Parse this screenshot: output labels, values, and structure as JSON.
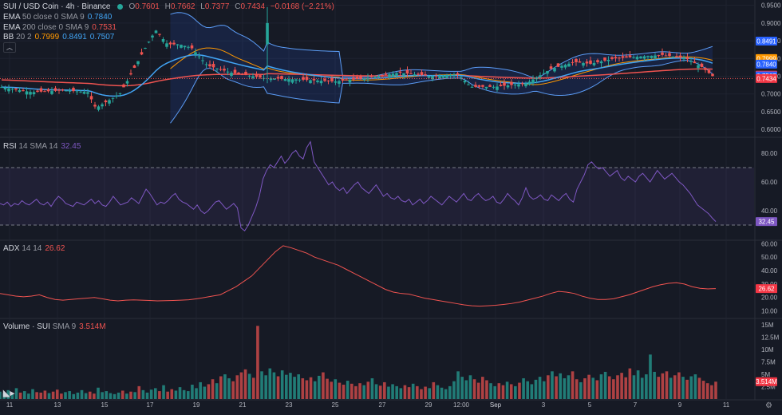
{
  "header": {
    "symbol": "SUI / USD Coin · 4h · Binance",
    "o_label": "O",
    "o": "0.7601",
    "h_label": "H",
    "h": "0.7662",
    "l_label": "L",
    "l": "0.7377",
    "c_label": "C",
    "c": "0.7434",
    "change": "−0.0168 (−2.21%)"
  },
  "indicators": {
    "ema50": {
      "name": "EMA",
      "params": "50 close 0 SMA 9",
      "value": "0.7840"
    },
    "ema200": {
      "name": "EMA",
      "params": "200 close 0 SMA 9",
      "value": "0.7531"
    },
    "bb": {
      "name": "BB",
      "params": "20 2",
      "v1": "0.7999",
      "v2": "0.8491",
      "v3": "0.7507"
    }
  },
  "rsi_legend": {
    "name": "RSI",
    "params": "14 SMA 14",
    "value": "32.45"
  },
  "adx_legend": {
    "name": "ADX",
    "params": "14 14",
    "value": "26.62"
  },
  "vol_legend": {
    "name": "Volume · SUI",
    "params": "SMA 9",
    "value": "3.514M"
  },
  "colors": {
    "up": "#26a69a",
    "down": "#ef5350",
    "ema50": "#42a5f5",
    "ema200": "#ef5350",
    "bb_basis": "#ff9800",
    "bb_band": "#5b9cf6",
    "rsi": "#7e57c2",
    "adx": "#ef5350"
  },
  "chart_data": [
    {
      "type": "candlestick",
      "name": "price",
      "x": [
        "11",
        "13",
        "15",
        "17",
        "19",
        "21",
        "23",
        "25",
        "27",
        "29",
        "12:00",
        "Sep",
        "3",
        "5",
        "7",
        "9",
        "11"
      ],
      "yticks": [
        "0.9500",
        "0.9000",
        "0.8500",
        "0.8000",
        "0.7500",
        "0.7000",
        "0.6500",
        "0.6000"
      ],
      "ylim": [
        0.58,
        0.965
      ],
      "last_close": 0.7434,
      "price_labels": [
        {
          "text": "0.8491",
          "value": 0.8491,
          "color": "#2962ff"
        },
        {
          "text": "0.7999",
          "value": 0.7999,
          "color": "#ff9800"
        },
        {
          "text": "0.7840",
          "value": 0.784,
          "color": "#2962ff"
        },
        {
          "text": "0.7531",
          "value": 0.7531,
          "color": "#f23645"
        },
        {
          "text": "0.7507",
          "value": 0.7507,
          "color": "#2962ff"
        },
        {
          "text": "0.7434",
          "value": 0.7434,
          "color": "#f23645"
        }
      ]
    },
    {
      "type": "line",
      "name": "RSI",
      "ylim": [
        20,
        90
      ],
      "yticks": [
        "80.00",
        "60.00",
        "40.00"
      ],
      "band": [
        30,
        70
      ],
      "last": "32.45",
      "values": [
        45,
        44,
        46,
        43,
        45,
        44,
        47,
        45,
        44,
        46,
        48,
        45,
        44,
        46,
        43,
        47,
        50,
        48,
        45,
        44,
        43,
        46,
        45,
        44,
        46,
        48,
        45,
        47,
        44,
        43,
        46,
        50,
        47,
        44,
        45,
        46,
        49,
        47,
        45,
        50,
        55,
        52,
        48,
        44,
        46,
        45,
        47,
        50,
        52,
        48,
        46,
        45,
        43,
        41,
        44,
        40,
        38,
        40,
        43,
        46,
        47,
        44,
        41,
        43,
        45,
        42,
        28,
        26,
        30,
        36,
        42,
        50,
        62,
        68,
        72,
        70,
        74,
        78,
        73,
        76,
        80,
        82,
        78,
        76,
        84,
        88,
        74,
        70,
        66,
        62,
        58,
        60,
        56,
        54,
        56,
        52,
        55,
        58,
        60,
        56,
        54,
        52,
        55,
        58,
        54,
        50,
        52,
        49,
        48,
        50,
        47,
        46,
        48,
        44,
        46,
        48,
        45,
        47,
        50,
        48,
        46,
        44,
        47,
        50,
        48,
        46,
        49,
        52,
        48,
        47,
        50,
        52,
        49,
        47,
        48,
        50,
        46,
        45,
        48,
        52,
        49,
        47,
        44,
        49,
        56,
        50,
        48,
        49,
        51,
        48,
        47,
        51,
        49,
        47,
        50,
        52,
        48,
        46,
        55,
        60,
        65,
        72,
        74,
        71,
        69,
        70,
        67,
        64,
        66,
        68,
        63,
        61,
        64,
        62,
        60,
        64,
        66,
        63,
        60,
        64,
        68,
        65,
        62,
        64,
        66,
        63,
        60,
        58,
        55,
        52,
        48,
        44,
        42,
        40,
        38,
        35,
        32.45
      ]
    },
    {
      "type": "line",
      "name": "ADX",
      "ylim": [
        5,
        62
      ],
      "yticks": [
        "60.00",
        "50.00",
        "40.00",
        "30.00",
        "20.00",
        "10.00"
      ],
      "last": "26.62",
      "values": [
        23,
        22,
        21,
        20.5,
        21,
        22,
        20,
        18.5,
        18,
        18.5,
        19,
        19.5,
        20,
        19,
        18,
        17.5,
        18,
        18.2,
        18,
        17.8,
        17.5,
        17.6,
        17.8,
        18,
        18.3,
        19,
        20,
        21,
        22,
        25,
        28,
        32,
        36,
        42,
        48,
        54,
        58.5,
        57,
        55,
        53,
        50,
        48,
        46,
        44,
        41,
        38,
        35,
        32,
        29,
        26,
        24,
        23,
        22.5,
        21,
        19.5,
        18.5,
        17.5,
        16.5,
        15.5,
        14.5,
        13.8,
        13.5,
        13.8,
        14.2,
        14.8,
        15.5,
        16.5,
        18,
        19.5,
        21,
        23,
        24.5,
        24,
        23,
        21,
        19.5,
        18.5,
        18.5,
        19,
        20.5,
        22,
        24,
        26,
        28,
        29.5,
        30.5,
        31,
        30,
        28,
        26.8,
        26.4,
        26.62
      ]
    },
    {
      "type": "bar",
      "name": "Volume",
      "ylim": [
        0,
        15.5
      ],
      "yticks": [
        "15M",
        "12.5M",
        "10M",
        "7.5M",
        "5M",
        "2.5M"
      ],
      "last": "3.514M",
      "values": [
        1.5,
        1.2,
        1.8,
        1.0,
        2.2,
        1.3,
        1.6,
        1.1,
        2.0,
        1.4,
        1.3,
        1.7,
        1.2,
        1.5,
        1.9,
        1.1,
        1.4,
        1.6,
        1.0,
        1.3,
        1.8,
        1.2,
        1.5,
        1.1,
        2.3,
        1.4,
        1.6,
        1.2,
        1.0,
        1.3,
        1.7,
        1.1,
        1.5,
        1.4,
        2.6,
        1.8,
        1.3,
        1.9,
        2.2,
        1.6,
        2.8,
        1.5,
        2.0,
        1.7,
        2.4,
        1.8,
        1.6,
        2.9,
        2.2,
        3.4,
        2.5,
        3.0,
        4.0,
        3.2,
        4.6,
        5.0,
        4.2,
        3.6,
        4.8,
        5.4,
        6.0,
        5.1,
        4.3,
        14.8,
        5.6,
        4.8,
        6.2,
        5.4,
        4.6,
        5.8,
        4.9,
        5.3,
        4.5,
        5.0,
        4.2,
        3.8,
        4.4,
        3.6,
        4.7,
        5.4,
        4.1,
        3.5,
        4.0,
        3.3,
        2.9,
        3.7,
        3.1,
        2.6,
        3.2,
        2.8,
        3.5,
        4.2,
        3.0,
        2.7,
        3.4,
        2.5,
        3.0,
        2.6,
        2.2,
        2.8,
        2.4,
        3.1,
        2.6,
        2.0,
        2.5,
        2.2,
        3.4,
        2.8,
        2.3,
        2.0,
        2.6,
        3.6,
        5.6,
        4.5,
        3.8,
        4.8,
        4.0,
        3.3,
        4.5,
        3.8,
        3.2,
        2.6,
        3.2,
        2.8,
        3.5,
        3.0,
        2.6,
        3.3,
        4.2,
        3.6,
        3.0,
        3.9,
        4.5,
        3.6,
        4.8,
        5.6,
        4.6,
        5.2,
        4.2,
        4.8,
        5.6,
        4.0,
        3.4,
        4.2,
        4.9,
        4.3,
        3.8,
        5.0,
        5.5,
        4.6,
        4.0,
        4.8,
        5.3,
        4.4,
        6.2,
        4.8,
        5.8,
        4.3,
        5.0,
        9.0,
        5.5,
        4.5,
        5.2,
        5.6,
        4.3,
        4.8,
        5.4,
        4.5,
        3.9,
        4.6,
        5.0,
        4.3,
        3.7,
        3.2,
        2.8,
        3.514
      ]
    }
  ]
}
